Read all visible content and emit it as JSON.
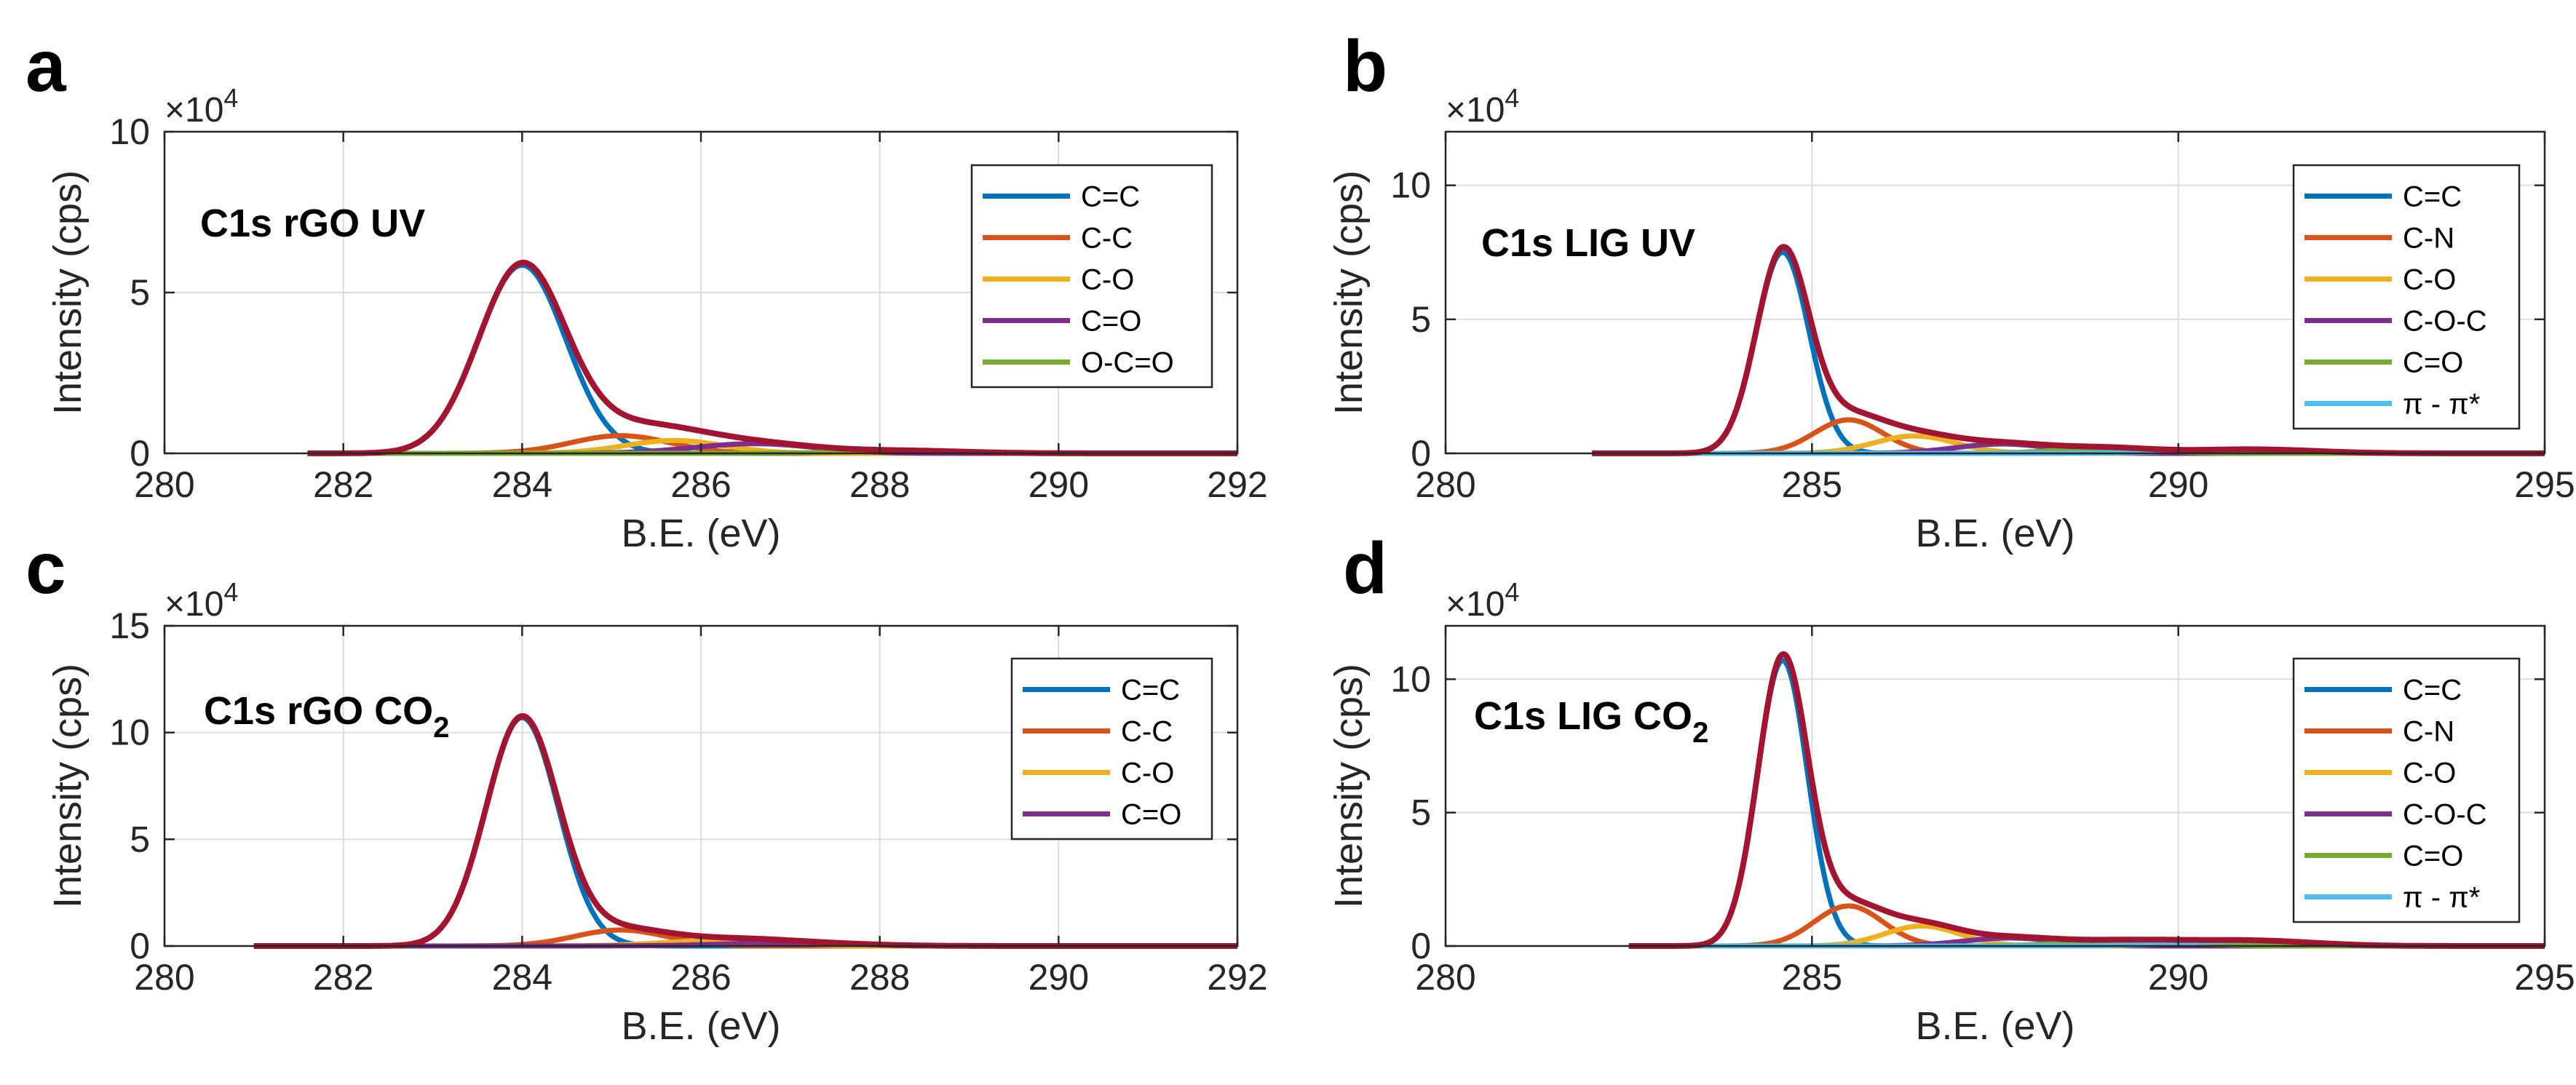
{
  "chart_data": [
    {
      "type": "line",
      "panel_letter": "a",
      "annotation": {
        "main": "C1s rGO UV",
        "subscript": ""
      },
      "xlabel": "B.E. (eV)",
      "ylabel": "Intensity (cps)",
      "y_exponent": {
        "base": "×10",
        "power": "4"
      },
      "xlim": [
        280,
        292
      ],
      "ylim": [
        0,
        10
      ],
      "xticks": [
        280,
        282,
        284,
        286,
        288,
        290,
        292
      ],
      "yticks": [
        0,
        5,
        10
      ],
      "x_start": 281.6,
      "grid": true,
      "legend_position": "top-right",
      "series": [
        {
          "name": "C=C",
          "color": "#0072BD",
          "peaks": [
            {
              "center": 284.0,
              "height": 5.85,
              "fwhm": 1.15
            }
          ]
        },
        {
          "name": "C-C",
          "color": "#D95319",
          "peaks": [
            {
              "center": 285.1,
              "height": 0.55,
              "fwhm": 1.3
            }
          ]
        },
        {
          "name": "C-O",
          "color": "#EDB120",
          "peaks": [
            {
              "center": 285.7,
              "height": 0.4,
              "fwhm": 1.3
            }
          ]
        },
        {
          "name": "C=O",
          "color": "#7E2F8E",
          "peaks": [
            {
              "center": 286.6,
              "height": 0.3,
              "fwhm": 1.6
            }
          ]
        },
        {
          "name": "O-C=O",
          "color": "#77AC30",
          "peaks": [
            {
              "center": 288.3,
              "height": 0.08,
              "fwhm": 1.6
            }
          ]
        }
      ],
      "envelope": {
        "name": "",
        "color": "#A2142F"
      }
    },
    {
      "type": "line",
      "panel_letter": "b",
      "annotation": {
        "main": "C1s LIG UV",
        "subscript": ""
      },
      "xlabel": "B.E. (eV)",
      "ylabel": "Intensity (cps)",
      "y_exponent": {
        "base": "×10",
        "power": "4"
      },
      "xlim": [
        280,
        295
      ],
      "ylim": [
        0,
        12
      ],
      "xticks": [
        280,
        285,
        290,
        295
      ],
      "yticks": [
        0,
        5,
        10
      ],
      "x_start": 282.0,
      "grid": true,
      "legend_position": "top-right",
      "series": [
        {
          "name": "C=C",
          "color": "#0072BD",
          "peaks": [
            {
              "center": 284.6,
              "height": 7.5,
              "fwhm": 0.85
            }
          ]
        },
        {
          "name": "C-N",
          "color": "#D95319",
          "peaks": [
            {
              "center": 285.5,
              "height": 1.25,
              "fwhm": 1.1
            }
          ]
        },
        {
          "name": "C-O",
          "color": "#EDB120",
          "peaks": [
            {
              "center": 286.4,
              "height": 0.65,
              "fwhm": 1.3
            }
          ]
        },
        {
          "name": "C-O-C",
          "color": "#7E2F8E",
          "peaks": [
            {
              "center": 287.6,
              "height": 0.35,
              "fwhm": 1.5
            }
          ]
        },
        {
          "name": "C=O",
          "color": "#77AC30",
          "peaks": [
            {
              "center": 289.0,
              "height": 0.2,
              "fwhm": 1.5
            }
          ]
        },
        {
          "name": "π - π*",
          "color": "#4DBEEE",
          "peaks": [
            {
              "center": 291.0,
              "height": 0.15,
              "fwhm": 2.0
            }
          ]
        }
      ],
      "envelope": {
        "name": "",
        "color": "#A2142F"
      }
    },
    {
      "type": "line",
      "panel_letter": "c",
      "annotation": {
        "main": "C1s rGO CO",
        "subscript": "2"
      },
      "xlabel": "B.E. (eV)",
      "ylabel": "Intensity (cps)",
      "y_exponent": {
        "base": "×10",
        "power": "4"
      },
      "xlim": [
        280,
        292
      ],
      "ylim": [
        0,
        15
      ],
      "xticks": [
        280,
        282,
        284,
        286,
        288,
        290,
        292
      ],
      "yticks": [
        0,
        5,
        10,
        15
      ],
      "x_start": 281.0,
      "grid": true,
      "legend_position": "top-right",
      "series": [
        {
          "name": "C=C",
          "color": "#0072BD",
          "peaks": [
            {
              "center": 284.0,
              "height": 10.7,
              "fwhm": 0.95
            }
          ]
        },
        {
          "name": "C-C",
          "color": "#D95319",
          "peaks": [
            {
              "center": 285.1,
              "height": 0.75,
              "fwhm": 1.2
            }
          ]
        },
        {
          "name": "C-O",
          "color": "#EDB120",
          "peaks": [
            {
              "center": 286.2,
              "height": 0.25,
              "fwhm": 1.5
            }
          ]
        },
        {
          "name": "C=O",
          "color": "#7E2F8E",
          "peaks": [
            {
              "center": 287.0,
              "height": 0.15,
              "fwhm": 1.8
            }
          ]
        }
      ],
      "envelope": {
        "name": "",
        "color": "#A2142F"
      }
    },
    {
      "type": "line",
      "panel_letter": "d",
      "annotation": {
        "main": "C1s LIG CO",
        "subscript": "2"
      },
      "xlabel": "B.E. (eV)",
      "ylabel": "Intensity (cps)",
      "y_exponent": {
        "base": "×10",
        "power": "4"
      },
      "xlim": [
        280,
        295
      ],
      "ylim": [
        0,
        12
      ],
      "xticks": [
        280,
        285,
        290,
        295
      ],
      "yticks": [
        0,
        5,
        10
      ],
      "x_start": 282.5,
      "grid": true,
      "legend_position": "top-right",
      "series": [
        {
          "name": "C=C",
          "color": "#0072BD",
          "peaks": [
            {
              "center": 284.6,
              "height": 10.7,
              "fwhm": 0.8
            }
          ]
        },
        {
          "name": "C-N",
          "color": "#D95319",
          "peaks": [
            {
              "center": 285.5,
              "height": 1.5,
              "fwhm": 1.1
            }
          ]
        },
        {
          "name": "C-O",
          "color": "#EDB120",
          "peaks": [
            {
              "center": 286.5,
              "height": 0.75,
              "fwhm": 1.2
            }
          ]
        },
        {
          "name": "C-O-C",
          "color": "#7E2F8E",
          "peaks": [
            {
              "center": 287.7,
              "height": 0.3,
              "fwhm": 1.5
            }
          ]
        },
        {
          "name": "C=O",
          "color": "#77AC30",
          "peaks": [
            {
              "center": 289.3,
              "height": 0.2,
              "fwhm": 1.8
            }
          ]
        },
        {
          "name": "π - π*",
          "color": "#4DBEEE",
          "peaks": [
            {
              "center": 291.0,
              "height": 0.2,
              "fwhm": 2.0
            }
          ]
        }
      ],
      "envelope": {
        "name": "",
        "color": "#A2142F"
      }
    }
  ]
}
